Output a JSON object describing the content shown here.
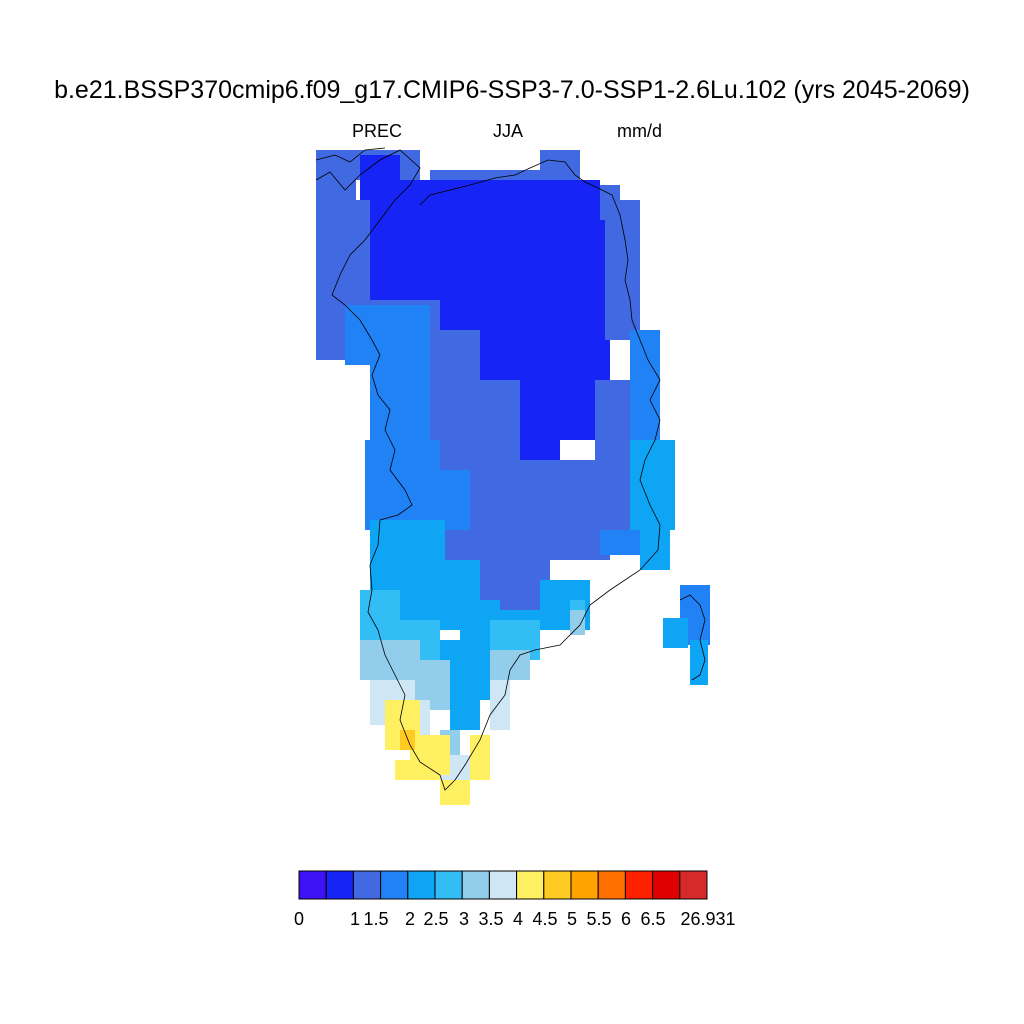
{
  "title": "b.e21.BSSP370cmip6.f09_g17.CMIP6-SSP3-7.0-SSP1-2.6Lu.102 (yrs 2045-2069)",
  "subtitle": {
    "variable": "PREC",
    "season": "JJA",
    "units": "mm/d"
  },
  "colorbar": {
    "colors": [
      "#3f12f5",
      "#1624f5",
      "#4169e1",
      "#2182f5",
      "#0ea5f5",
      "#33bdf5",
      "#93cdec",
      "#cfe6f5",
      "#fff062",
      "#ffcb22",
      "#ffa300",
      "#ff7000",
      "#ff2000",
      "#e00000",
      "#d62a2a"
    ],
    "labels": [
      "0",
      "1",
      "1.5",
      "2",
      "2.5",
      "3",
      "3.5",
      "4",
      "4.5",
      "5",
      "5.5",
      "6",
      "6.5",
      "26.931"
    ]
  },
  "map_data": {
    "region": "Greenland",
    "field": "PREC",
    "legend": "bottom-center",
    "value_range": [
      0,
      26.931
    ]
  }
}
